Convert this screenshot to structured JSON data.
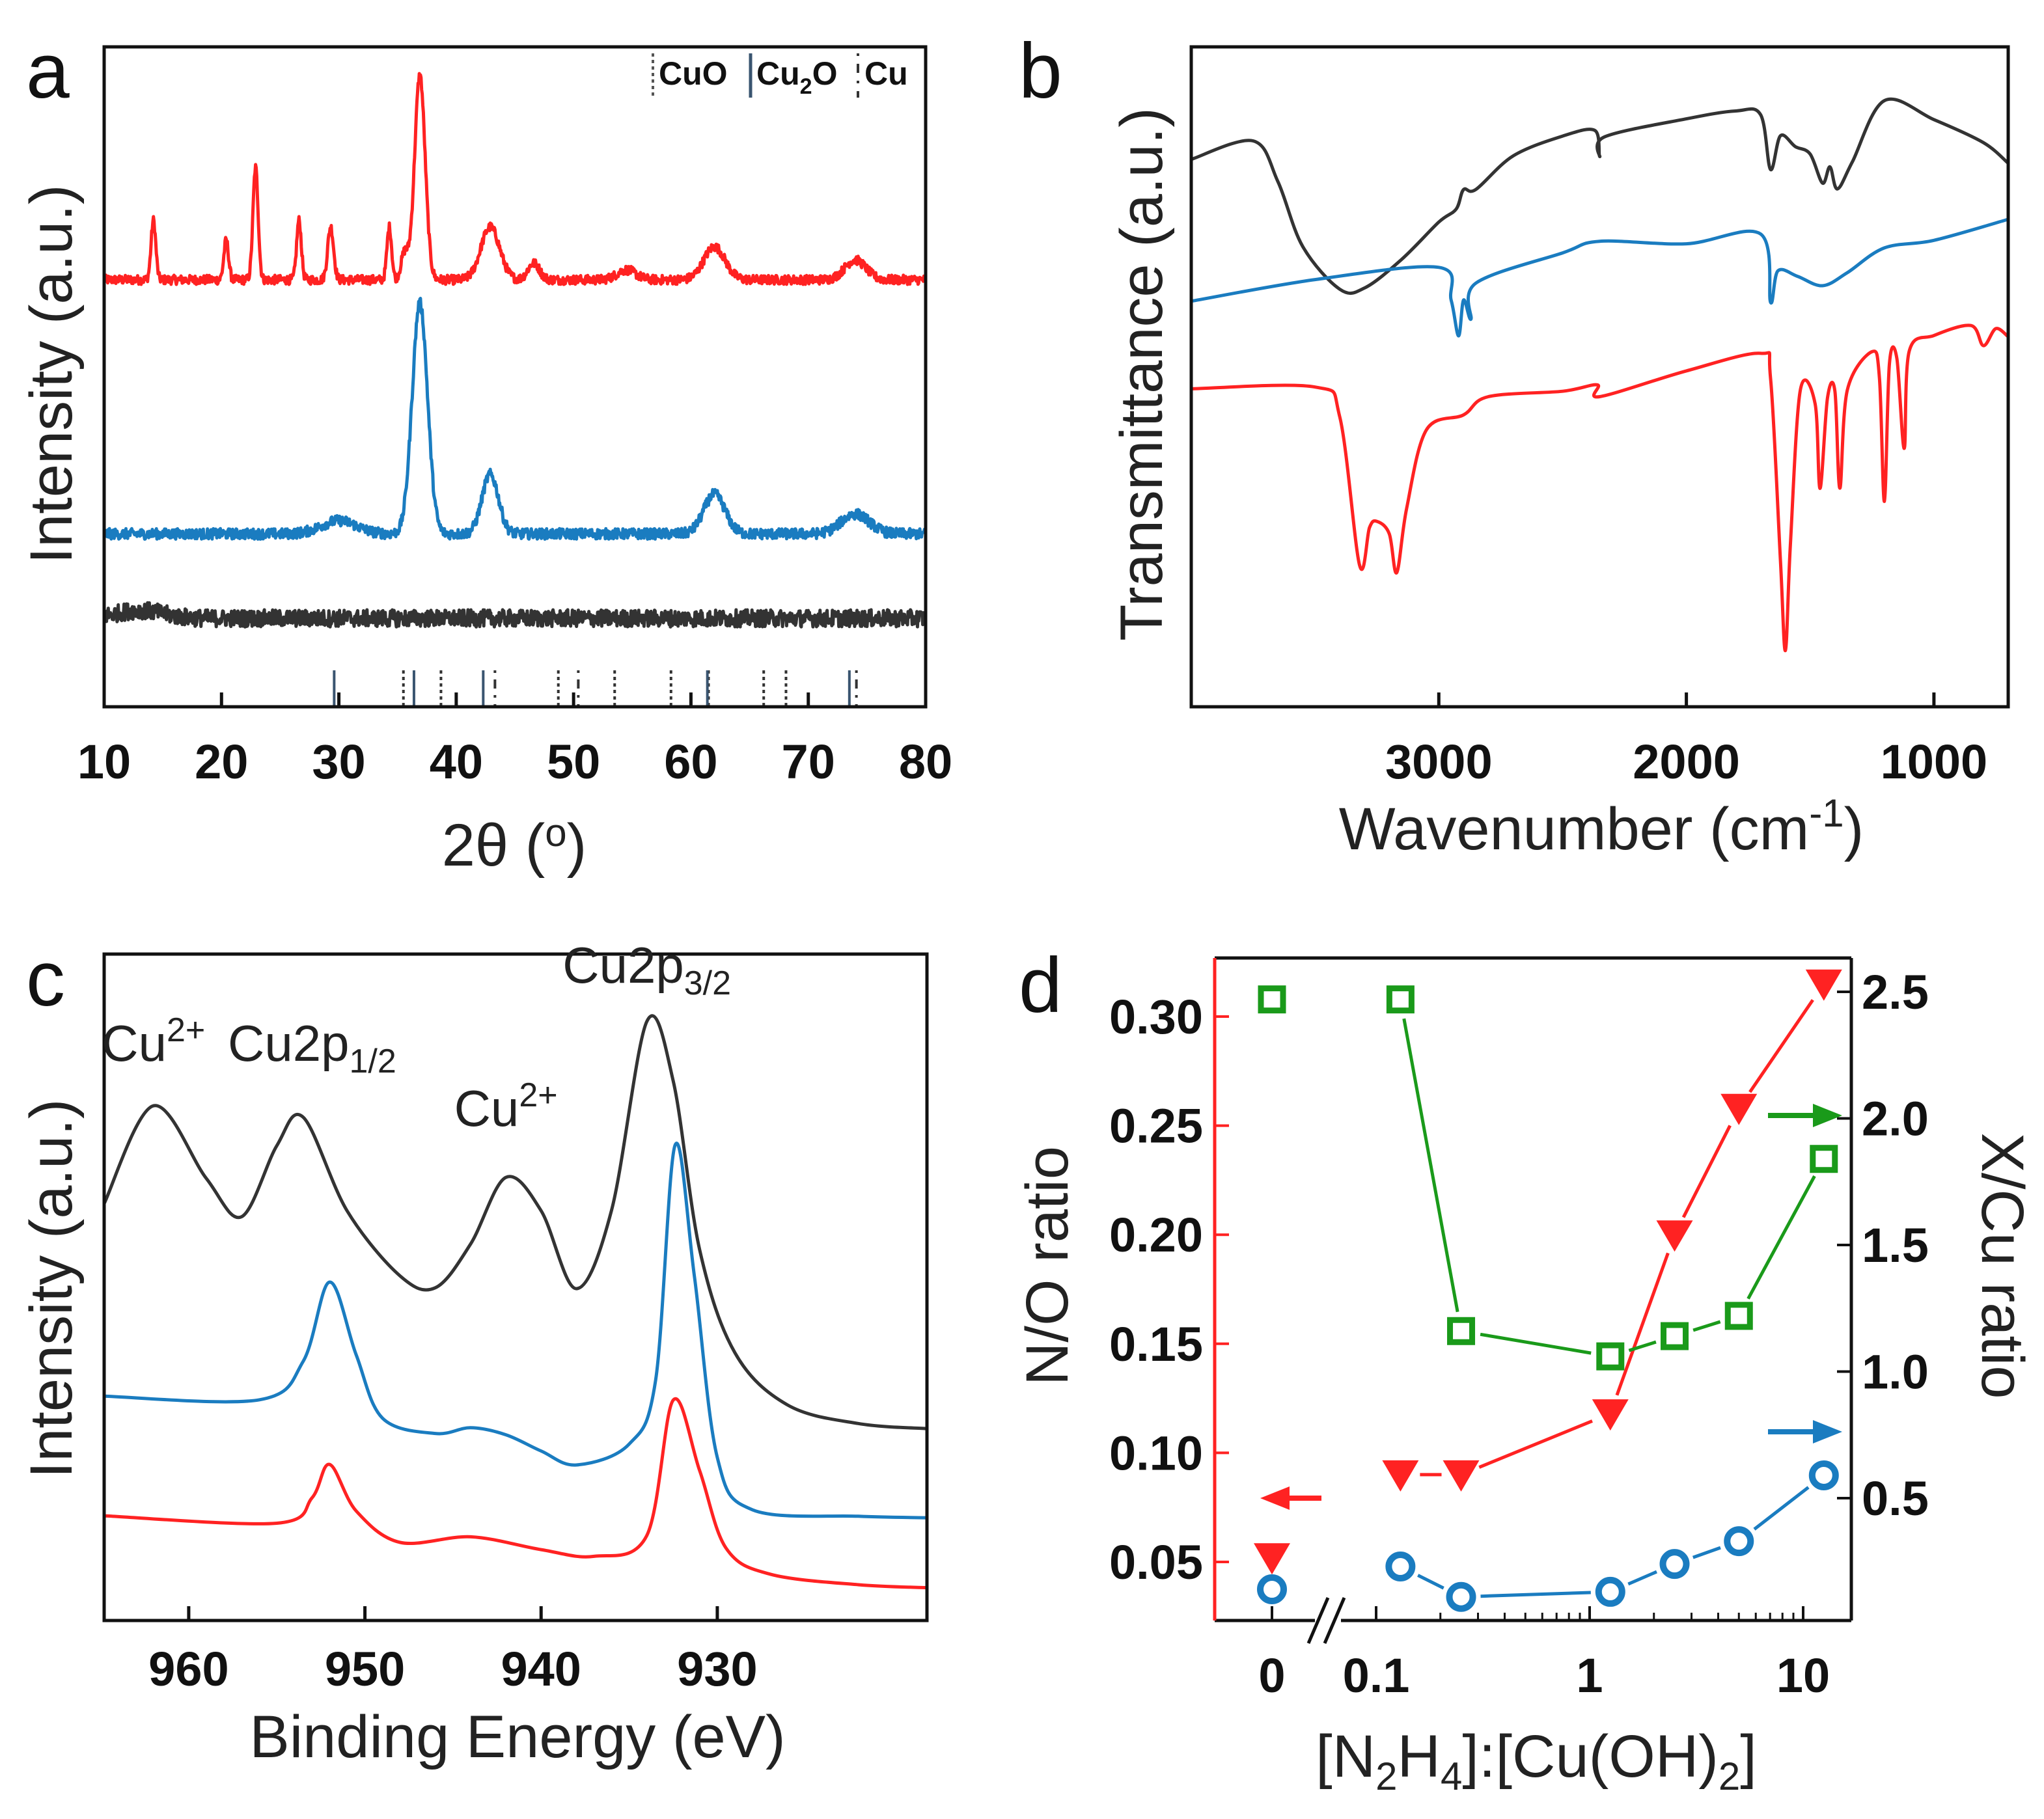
{
  "colors": {
    "red": "#ff2222",
    "blue": "#1a7cc0",
    "black": "#333333",
    "green": "#1a9a1a",
    "axis_red": "#ff2222"
  },
  "panels": {
    "a": "a",
    "b": "b",
    "c": "c",
    "d": "d"
  },
  "chart_data": [
    {
      "id": "a",
      "type": "line",
      "title": "",
      "xlabel": {
        "pre": "2θ (",
        "sup": "o",
        "post": ")"
      },
      "ylabel": "Intensity (a.u.)",
      "xlim": [
        10,
        80
      ],
      "ylim": [
        0,
        100
      ],
      "xticks": [
        10,
        20,
        30,
        40,
        50,
        60,
        70,
        80
      ],
      "legend": {
        "placement": "top-right",
        "items": [
          {
            "style": "dotted",
            "text": "CuO"
          },
          {
            "style": "solid",
            "text": "Cu",
            "sub": "2",
            "post": "O"
          },
          {
            "style": "dashed",
            "text": "Cu"
          }
        ]
      },
      "series": [
        {
          "name": "red",
          "color": "red",
          "baseline": 64.7,
          "noise": 0.7,
          "peaks": [
            [
              14.2,
              9,
              0.2
            ],
            [
              20.4,
              6,
              0.2
            ],
            [
              22.9,
              17,
              0.22
            ],
            [
              26.6,
              9,
              0.2
            ],
            [
              29.3,
              8,
              0.25
            ],
            [
              34.3,
              8,
              0.2
            ],
            [
              35.6,
              4,
              0.3
            ],
            [
              36.9,
              31,
              0.45
            ],
            [
              42.9,
              8,
              0.8
            ],
            [
              46.6,
              2.5,
              0.5
            ],
            [
              54.5,
              1.5,
              0.8
            ],
            [
              62,
              5,
              0.9
            ],
            [
              74,
              3,
              0.9
            ]
          ]
        },
        {
          "name": "blue",
          "color": "blue",
          "baseline": 26.2,
          "noise": 0.8,
          "peaks": [
            [
              30,
              2,
              1.5
            ],
            [
              36.9,
              35,
              0.65
            ],
            [
              42.9,
              9,
              0.7
            ],
            [
              62,
              6,
              0.9
            ],
            [
              74,
              3,
              1.2
            ]
          ]
        },
        {
          "name": "black",
          "color": "black",
          "baseline": 13.4,
          "noise": 1.3,
          "peaks": [
            [
              13,
              1.2,
              2
            ]
          ]
        }
      ],
      "reference_lines": [
        {
          "type": "CuO",
          "style": "dotted",
          "positions": [
            35.5,
            38.7,
            48.7,
            53.5,
            58.3,
            61.5,
            66.2,
            68.1
          ]
        },
        {
          "type": "Cu2O",
          "style": "solid",
          "positions": [
            29.6,
            36.4,
            42.3,
            61.4,
            73.5
          ]
        },
        {
          "type": "Cu",
          "style": "dashed",
          "positions": [
            43.3,
            50.4,
            74.1
          ]
        }
      ]
    },
    {
      "id": "b",
      "type": "line",
      "xlabel": {
        "pre": "Wavenumber (cm",
        "sup": "-1",
        "post": ")"
      },
      "ylabel": "Transmittance (a.u.)",
      "xlim": [
        4000,
        700
      ],
      "ylim": [
        0,
        507
      ],
      "xticks": [
        3000,
        2000,
        1000
      ],
      "series": [
        {
          "name": "black",
          "color": "black",
          "points": [
            [
              4000,
              421
            ],
            [
              3750,
              435
            ],
            [
              3650,
              403
            ],
            [
              3550,
              353
            ],
            [
              3400,
              321
            ],
            [
              3300,
              321
            ],
            [
              3150,
              343
            ],
            [
              3000,
              373
            ],
            [
              2930,
              383
            ],
            [
              2900,
              398
            ],
            [
              2850,
              398
            ],
            [
              2700,
              423
            ],
            [
              2500,
              438
            ],
            [
              2370,
              443
            ],
            [
              2350,
              423
            ],
            [
              2330,
              438
            ],
            [
              2000,
              451
            ],
            [
              1800,
              458
            ],
            [
              1700,
              455
            ],
            [
              1660,
              413
            ],
            [
              1620,
              438
            ],
            [
              1560,
              431
            ],
            [
              1500,
              425
            ],
            [
              1450,
              403
            ],
            [
              1420,
              415
            ],
            [
              1390,
              398
            ],
            [
              1330,
              418
            ],
            [
              1200,
              465
            ],
            [
              1000,
              451
            ],
            [
              800,
              433
            ],
            [
              700,
              418
            ]
          ]
        },
        {
          "name": "blue",
          "color": "blue",
          "points": [
            [
              4000,
              311
            ],
            [
              3500,
              328
            ],
            [
              3000,
              338
            ],
            [
              2950,
              313
            ],
            [
              2920,
              285
            ],
            [
              2900,
              313
            ],
            [
              2870,
              298
            ],
            [
              2850,
              325
            ],
            [
              2500,
              348
            ],
            [
              2350,
              358
            ],
            [
              2000,
              355
            ],
            [
              1700,
              363
            ],
            [
              1660,
              311
            ],
            [
              1630,
              335
            ],
            [
              1550,
              331
            ],
            [
              1450,
              323
            ],
            [
              1350,
              333
            ],
            [
              1200,
              353
            ],
            [
              1000,
              358
            ],
            [
              700,
              375
            ]
          ]
        },
        {
          "name": "red",
          "color": "red",
          "points": [
            [
              4000,
              245
            ],
            [
              3500,
              245
            ],
            [
              3400,
              223
            ],
            [
              3320,
              108
            ],
            [
              3280,
              138
            ],
            [
              3250,
              143
            ],
            [
              3200,
              133
            ],
            [
              3170,
              103
            ],
            [
              3130,
              153
            ],
            [
              3050,
              213
            ],
            [
              2900,
              225
            ],
            [
              2800,
              238
            ],
            [
              2500,
              243
            ],
            [
              2360,
              248
            ],
            [
              2350,
              238
            ],
            [
              2000,
              258
            ],
            [
              1700,
              271
            ],
            [
              1660,
              253
            ],
            [
              1620,
              113
            ],
            [
              1600,
              43
            ],
            [
              1580,
              123
            ],
            [
              1540,
              243
            ],
            [
              1480,
              233
            ],
            [
              1460,
              168
            ],
            [
              1430,
              238
            ],
            [
              1400,
              243
            ],
            [
              1380,
              168
            ],
            [
              1350,
              243
            ],
            [
              1250,
              273
            ],
            [
              1220,
              253
            ],
            [
              1200,
              158
            ],
            [
              1180,
              263
            ],
            [
              1150,
              268
            ],
            [
              1120,
              198
            ],
            [
              1100,
              273
            ],
            [
              1000,
              285
            ],
            [
              850,
              293
            ],
            [
              800,
              278
            ],
            [
              750,
              291
            ],
            [
              700,
              285
            ]
          ]
        }
      ]
    },
    {
      "id": "c",
      "type": "line",
      "xlabel": "Binding Energy (eV)",
      "ylabel": "Intensity (a.u.)",
      "xlim": [
        964.8,
        918.1
      ],
      "ylim": [
        0,
        512
      ],
      "xticks": [
        960,
        950,
        940,
        930
      ],
      "annotations": [
        {
          "x": 962,
          "y": 430,
          "text": "Cu",
          "sup": "2+"
        },
        {
          "x": 953,
          "y": 430,
          "text": "Cu2p",
          "sub": "1/2"
        },
        {
          "x": 942,
          "y": 380,
          "text": "Cu",
          "sup": "2+"
        },
        {
          "x": 934,
          "y": 490,
          "text": "Cu2p",
          "sub": "3/2"
        }
      ],
      "series": [
        {
          "name": "black",
          "color": "black",
          "points": [
            [
              964.8,
              320
            ],
            [
              962,
              395
            ],
            [
              959,
              340
            ],
            [
              957,
              310
            ],
            [
              955,
              365
            ],
            [
              953.5,
              387
            ],
            [
              951,
              315
            ],
            [
              948,
              265
            ],
            [
              946,
              255
            ],
            [
              944,
              290
            ],
            [
              942,
              340
            ],
            [
              940,
              315
            ],
            [
              938,
              255
            ],
            [
              936,
              315
            ],
            [
              934,
              460
            ],
            [
              932.5,
              415
            ],
            [
              931,
              285
            ],
            [
              929,
              205
            ],
            [
              926,
              165
            ],
            [
              922,
              152
            ],
            [
              918.1,
              148
            ]
          ]
        },
        {
          "name": "blue",
          "color": "blue",
          "points": [
            [
              964.8,
              173
            ],
            [
              956,
              170
            ],
            [
              953.5,
              200
            ],
            [
              952,
              260
            ],
            [
              950.5,
              205
            ],
            [
              949,
              155
            ],
            [
              946,
              143
            ],
            [
              944,
              148
            ],
            [
              942,
              143
            ],
            [
              940,
              130
            ],
            [
              938,
              120
            ],
            [
              935,
              135
            ],
            [
              933.5,
              185
            ],
            [
              932.4,
              365
            ],
            [
              931.3,
              265
            ],
            [
              930,
              125
            ],
            [
              928,
              85
            ],
            [
              922,
              80
            ],
            [
              918.1,
              79
            ]
          ]
        },
        {
          "name": "red",
          "color": "red",
          "points": [
            [
              964.8,
              80
            ],
            [
              955,
              75
            ],
            [
              953,
              95
            ],
            [
              952,
              120
            ],
            [
              950.5,
              85
            ],
            [
              948,
              60
            ],
            [
              944,
              65
            ],
            [
              940,
              55
            ],
            [
              937,
              50
            ],
            [
              934,
              65
            ],
            [
              932.5,
              170
            ],
            [
              931,
              115
            ],
            [
              929.5,
              55
            ],
            [
              927,
              35
            ],
            [
              922,
              28
            ],
            [
              918.1,
              25
            ]
          ]
        }
      ]
    },
    {
      "id": "d",
      "type": "scatter",
      "xlabel": {
        "p1": "[N",
        "s1": "2",
        "p2": "H",
        "s2": "4",
        "p3": "]:[Cu(OH)",
        "s3": "2",
        "p4": "]"
      },
      "ylabel_left": "N/O ratio",
      "ylabel_right": "X/Cu ratio",
      "xscale": "log (with break between 0 and 0.1)",
      "xticks": [
        "0",
        "0.1",
        "1",
        "10"
      ],
      "ylim_left": [
        0.025,
        0.33
      ],
      "ylim_right": [
        0,
        2.65
      ],
      "yticks_left": [
        "0.05",
        "0.10",
        "0.15",
        "0.20",
        "0.25",
        "0.30"
      ],
      "yticks_right": [
        "0.5",
        "1.0",
        "1.5",
        "2.0",
        "2.5"
      ],
      "x": [
        0,
        0.13,
        0.25,
        1.25,
        2.5,
        5,
        12.5
      ],
      "series": [
        {
          "name": "N/O ratio",
          "axis": "left",
          "marker": "triangle-down",
          "color": "red",
          "values": [
            0.052,
            0.09,
            0.09,
            0.118,
            0.2,
            0.258,
            0.315
          ]
        },
        {
          "name": "X/Cu ratio (green)",
          "axis": "right",
          "marker": "square",
          "color": "green",
          "values": [
            2.47,
            2.47,
            1.16,
            1.06,
            1.14,
            1.22,
            1.84
          ]
        },
        {
          "name": "X/Cu ratio (blue)",
          "axis": "right",
          "marker": "circle",
          "color": "blue",
          "values": [
            0.14,
            0.23,
            0.11,
            0.13,
            0.24,
            0.33,
            0.59
          ]
        }
      ]
    }
  ]
}
